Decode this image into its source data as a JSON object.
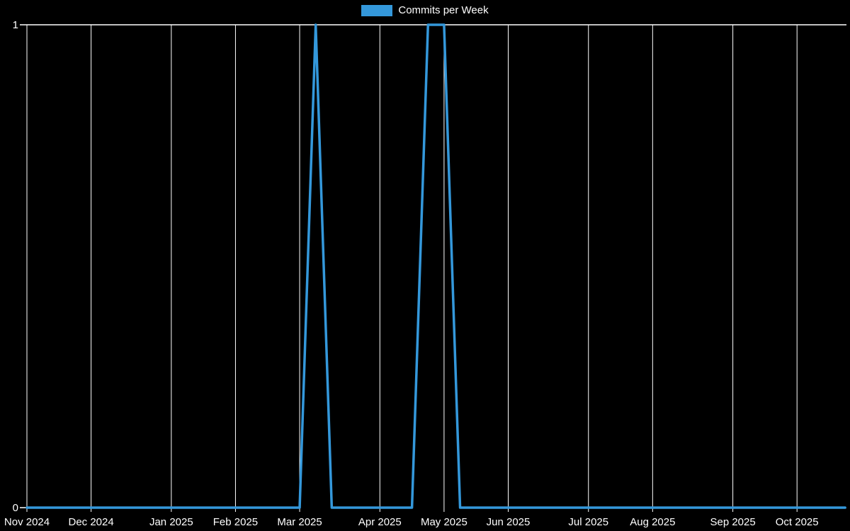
{
  "colors": {
    "background": "#000000",
    "grid": "#ffffff",
    "line": "#3498db",
    "text": "#ffffff"
  },
  "legend": {
    "label": "Commits per Week",
    "swatch_color": "#3498db"
  },
  "chart_data": {
    "type": "line",
    "title": "Commits per Week",
    "xlabel": "",
    "ylabel": "",
    "ylim": [
      0,
      1
    ],
    "grid": "vertical-monthly",
    "legend_position": "top-center",
    "weeks_total": 52,
    "x_ticks": [
      {
        "label": "Nov 2024",
        "week": 0
      },
      {
        "label": "Dec 2024",
        "week": 4
      },
      {
        "label": "Jan 2025",
        "week": 9
      },
      {
        "label": "Feb 2025",
        "week": 13
      },
      {
        "label": "Mar 2025",
        "week": 17
      },
      {
        "label": "Apr 2025",
        "week": 22
      },
      {
        "label": "May 2025",
        "week": 26
      },
      {
        "label": "Jun 2025",
        "week": 30
      },
      {
        "label": "Jul 2025",
        "week": 35
      },
      {
        "label": "Aug 2025",
        "week": 39
      },
      {
        "label": "Sep 2025",
        "week": 44
      },
      {
        "label": "Oct 2025",
        "week": 48
      }
    ],
    "y_ticks": [
      {
        "label": "0",
        "value": 0
      },
      {
        "label": "1",
        "value": 1
      }
    ],
    "series": [
      {
        "name": "Commits per Week",
        "values": [
          0,
          0,
          0,
          0,
          0,
          0,
          0,
          0,
          0,
          0,
          0,
          0,
          0,
          0,
          0,
          0,
          0,
          0,
          1,
          0,
          0,
          0,
          0,
          0,
          0,
          1,
          1,
          0,
          0,
          0,
          0,
          0,
          0,
          0,
          0,
          0,
          0,
          0,
          0,
          0,
          0,
          0,
          0,
          0,
          0,
          0,
          0,
          0,
          0,
          0,
          0,
          0
        ]
      }
    ]
  }
}
